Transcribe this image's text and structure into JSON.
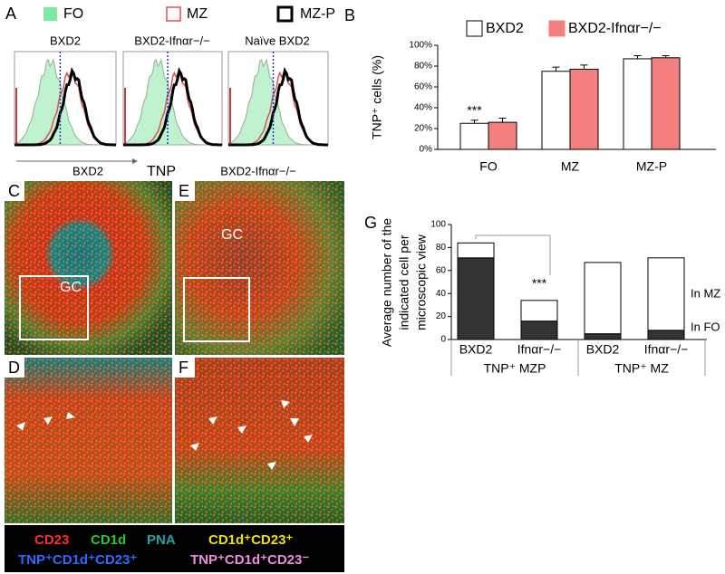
{
  "panel_a": {
    "label": "A",
    "legend": [
      {
        "name": "FO",
        "color": "#7fe8a2"
      },
      {
        "name": "MZ",
        "color": "#e05050"
      },
      {
        "name": "MZ-P",
        "color": "#000000"
      }
    ],
    "plots": [
      "BXD2",
      "BXD2-Ifnαr−/−",
      "Naïve BXD2"
    ],
    "xlabel": "TNP"
  },
  "microscopy": {
    "panels": [
      {
        "label": "C",
        "title": "BXD2",
        "region": "GC"
      },
      {
        "label": "E",
        "title": "BXD2-Ifnαr−/−",
        "region": "GC"
      },
      {
        "label": "D"
      },
      {
        "label": "F"
      }
    ],
    "stains": [
      {
        "name": "CD23",
        "color": "#ff2a2a"
      },
      {
        "name": "CD1d",
        "color": "#22cc22"
      },
      {
        "name": "PNA",
        "color": "#1fa5a5"
      },
      {
        "name": "CD1d⁺CD23⁺",
        "color": "#f5e000"
      },
      {
        "name": "TNP⁺CD1d⁺CD23⁺",
        "color": "#2a6bff"
      },
      {
        "name": "TNP⁺CD1d⁺CD23⁻",
        "color": "#f08ce0"
      }
    ]
  },
  "chart_data": [
    {
      "type": "bar",
      "label": "B",
      "ylabel": "TNP⁺ cells (%)",
      "categories": [
        "FO",
        "MZ",
        "MZ-P"
      ],
      "series": [
        {
          "name": "BXD2",
          "color": "#ffffff",
          "values": [
            25,
            75,
            87
          ],
          "errors": [
            3,
            4,
            3
          ]
        },
        {
          "name": "BXD2-Ifnαr−/−",
          "color": "#f47f7f",
          "values": [
            26,
            77,
            88
          ],
          "errors": [
            4,
            4,
            2
          ]
        }
      ],
      "annotation": "***",
      "ylim": [
        0,
        100
      ],
      "yticks": [
        {
          "value": 0,
          "label": "0%"
        },
        {
          "value": 20,
          "label": "20%"
        },
        {
          "value": 40,
          "label": "40%"
        },
        {
          "value": 60,
          "label": "60%"
        },
        {
          "value": 80,
          "label": "80%"
        },
        {
          "value": 100,
          "label": "100%"
        }
      ],
      "grid": false
    },
    {
      "type": "stacked_bar",
      "label": "G",
      "ylabel": [
        "Average number of the",
        "indicated cell per",
        "microscopic view"
      ],
      "categories": [
        "BXD2",
        "Ifnαr−/−",
        "BXD2",
        "Ifnαr−/−"
      ],
      "groups": [
        "TNP⁺ MZP",
        "TNP⁺ MZ"
      ],
      "series": [
        {
          "name": "In FO",
          "color": "#333333",
          "values": [
            71,
            16,
            5,
            8
          ]
        },
        {
          "name": "In MZ",
          "color": "#ffffff",
          "values": [
            13,
            18,
            62,
            63
          ]
        }
      ],
      "annotation": "***",
      "ylim": [
        0,
        100
      ],
      "yticks": [
        0,
        20,
        40,
        60,
        80,
        100
      ],
      "grid": false
    }
  ]
}
